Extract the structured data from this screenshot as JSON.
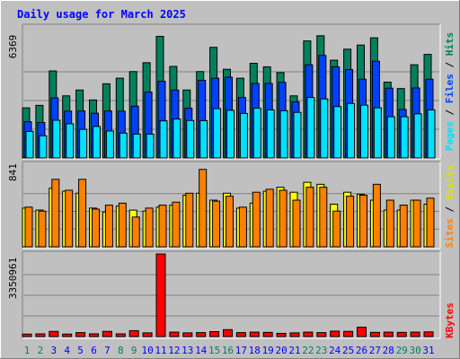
{
  "title": "Daily usage for March 2025",
  "colors": {
    "background": "#c0c0c0",
    "title": "#0000ff",
    "hits": "#00805c",
    "files": "#0040ff",
    "pages": "#00e0ff",
    "visits": "#ffff00",
    "sites": "#ff8000",
    "kbytes": "#ff0000",
    "separator": "#000000",
    "weekend_day_label": "#00805c",
    "weekday_label": "#0000ff"
  },
  "chart_data": [
    {
      "type": "bar",
      "panel": "hits-files-pages",
      "y_scale_label": "6369",
      "ylim": [
        0,
        6369
      ],
      "legend": [
        "Pages",
        "Files",
        "Hits"
      ],
      "categories": [
        "1",
        "2",
        "3",
        "4",
        "5",
        "6",
        "7",
        "8",
        "9",
        "10",
        "11",
        "12",
        "13",
        "14",
        "15",
        "16",
        "17",
        "18",
        "19",
        "20",
        "21",
        "22",
        "23",
        "24",
        "25",
        "26",
        "27",
        "28",
        "29",
        "30",
        "31"
      ],
      "series": [
        {
          "name": "Hits",
          "values": [
            2420,
            2540,
            4200,
            3000,
            3280,
            2800,
            3580,
            3850,
            4170,
            4600,
            5870,
            4420,
            3280,
            4170,
            5340,
            4280,
            3850,
            4570,
            4400,
            4120,
            3000,
            5650,
            5900,
            4720,
            5250,
            5450,
            5800,
            3660,
            3350,
            4500,
            5000
          ]
        },
        {
          "name": "Files",
          "values": [
            1750,
            1710,
            2900,
            2260,
            2270,
            2160,
            2270,
            2260,
            2500,
            3180,
            3700,
            3280,
            2400,
            3750,
            3850,
            3900,
            2920,
            3600,
            3600,
            3650,
            2710,
            4500,
            4950,
            4400,
            4270,
            3800,
            4670,
            3370,
            2340,
            3380,
            3800
          ]
        },
        {
          "name": "Pages",
          "values": [
            1280,
            1070,
            1820,
            1650,
            1380,
            1520,
            1300,
            1200,
            1150,
            1150,
            1790,
            1880,
            1810,
            1800,
            2380,
            2300,
            2150,
            2400,
            2320,
            2280,
            2200,
            2920,
            2850,
            2480,
            2630,
            2550,
            2420,
            1990,
            1990,
            2130,
            2320
          ]
        }
      ]
    },
    {
      "type": "bar",
      "panel": "visits-sites",
      "y_scale_label": "841",
      "ylim": [
        0,
        841
      ],
      "legend": [
        "Sites",
        "Visits"
      ],
      "categories": [
        "1",
        "2",
        "3",
        "4",
        "5",
        "6",
        "7",
        "8",
        "9",
        "10",
        "11",
        "12",
        "13",
        "14",
        "15",
        "16",
        "17",
        "18",
        "19",
        "20",
        "21",
        "22",
        "23",
        "24",
        "25",
        "26",
        "27",
        "28",
        "29",
        "30",
        "31"
      ],
      "series": [
        {
          "name": "Visits",
          "values": [
            390,
            370,
            590,
            560,
            540,
            390,
            350,
            410,
            370,
            360,
            400,
            420,
            520,
            540,
            470,
            540,
            390,
            440,
            560,
            600,
            550,
            650,
            630,
            430,
            550,
            530,
            470,
            370,
            370,
            470,
            430
          ]
        },
        {
          "name": "Sites",
          "values": [
            400,
            360,
            680,
            570,
            680,
            380,
            420,
            440,
            300,
            390,
            420,
            450,
            540,
            780,
            460,
            510,
            400,
            550,
            580,
            570,
            470,
            600,
            600,
            360,
            510,
            520,
            630,
            470,
            420,
            470,
            490
          ]
        }
      ]
    },
    {
      "type": "bar",
      "panel": "kbytes",
      "y_scale_label": "3350961",
      "ylim": [
        0,
        3350961
      ],
      "legend": [
        "KBytes"
      ],
      "categories": [
        "1",
        "2",
        "3",
        "4",
        "5",
        "6",
        "7",
        "8",
        "9",
        "10",
        "11",
        "12",
        "13",
        "14",
        "15",
        "16",
        "17",
        "18",
        "19",
        "20",
        "21",
        "22",
        "23",
        "24",
        "25",
        "26",
        "27",
        "28",
        "29",
        "30",
        "31"
      ],
      "series": [
        {
          "name": "KBytes",
          "values": [
            100000,
            110000,
            210000,
            100000,
            160000,
            110000,
            210000,
            110000,
            240000,
            150000,
            3350961,
            180000,
            150000,
            160000,
            200000,
            280000,
            160000,
            180000,
            170000,
            130000,
            150000,
            180000,
            160000,
            220000,
            210000,
            380000,
            170000,
            180000,
            170000,
            180000,
            190000
          ]
        }
      ]
    }
  ],
  "weekend_days": [
    "1",
    "2",
    "8",
    "9",
    "15",
    "16",
    "22",
    "23",
    "29",
    "30"
  ]
}
